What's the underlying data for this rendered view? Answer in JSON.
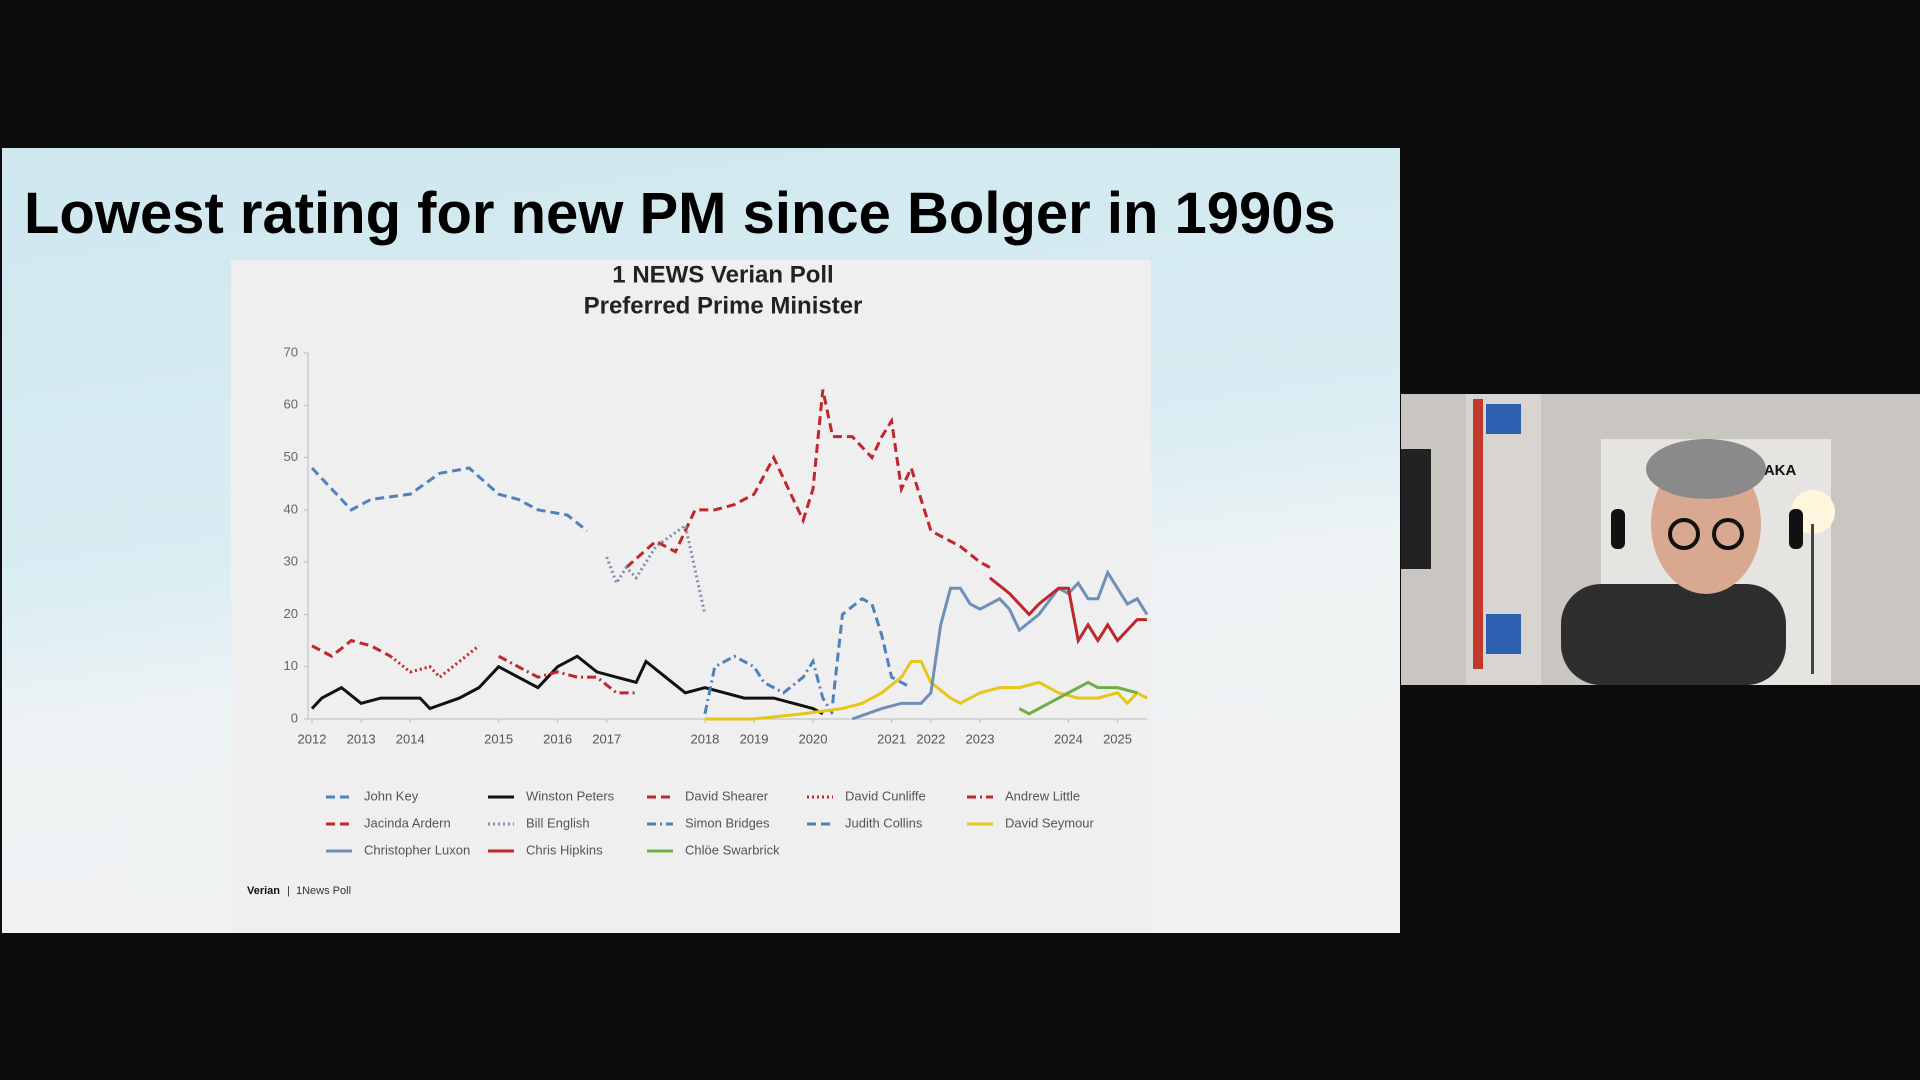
{
  "slide": {
    "title": "Lowest rating for new PM since Bolger in 1990s",
    "source": {
      "brand": "Verian",
      "separator": "|",
      "text": "1News Poll"
    }
  },
  "webcam": {
    "sign_text": "KAKA"
  },
  "chart_data": {
    "type": "line",
    "title": "1 NEWS Verian Poll",
    "subtitle": "Preferred Prime Minister",
    "xlim": [
      0,
      85
    ],
    "xticks": [
      {
        "value": 0,
        "label": "2012"
      },
      {
        "value": 5,
        "label": "2013"
      },
      {
        "value": 10,
        "label": "2014"
      },
      {
        "value": 19,
        "label": "2015"
      },
      {
        "value": 25,
        "label": "2016"
      },
      {
        "value": 30,
        "label": "2017"
      },
      {
        "value": 40,
        "label": "2018"
      },
      {
        "value": 45,
        "label": "2019"
      },
      {
        "value": 51,
        "label": "2020"
      },
      {
        "value": 59,
        "label": "2021"
      },
      {
        "value": 63,
        "label": "2022"
      },
      {
        "value": 68,
        "label": "2023"
      },
      {
        "value": 77,
        "label": "2024"
      },
      {
        "value": 82,
        "label": "2025"
      }
    ],
    "ylim": [
      0,
      70
    ],
    "yticks": [
      0,
      10,
      20,
      30,
      40,
      50,
      60,
      70
    ],
    "series": [
      {
        "name": "John Key",
        "color": "#4f81bd",
        "dash": "dash",
        "x": [
          0,
          2,
          4,
          6,
          10,
          13,
          16,
          19,
          21,
          23,
          26,
          28
        ],
        "values": [
          48,
          44,
          40,
          42,
          43,
          47,
          48,
          43,
          42,
          40,
          39,
          36
        ]
      },
      {
        "name": "Winston Peters",
        "color": "#111111",
        "dash": "solid",
        "x": [
          0,
          1,
          3,
          5,
          7,
          11,
          12,
          15,
          17,
          19,
          21,
          23,
          25,
          27,
          29,
          31,
          33,
          34,
          36,
          38,
          40,
          42,
          44,
          47,
          49,
          51,
          52
        ],
        "values": [
          2,
          4,
          6,
          3,
          4,
          4,
          2,
          4,
          6,
          10,
          8,
          6,
          10,
          12,
          9,
          8,
          7,
          11,
          8,
          5,
          6,
          5,
          4,
          4,
          3,
          2,
          1
        ]
      },
      {
        "name": "David Shearer",
        "color": "#c0272d",
        "dash": "dash",
        "x": [
          0,
          2,
          4,
          6,
          8
        ],
        "values": [
          14,
          12,
          15,
          14,
          12
        ]
      },
      {
        "name": "David Cunliffe",
        "color": "#c0272d",
        "dash": "dot",
        "x": [
          8,
          10,
          12,
          13,
          15,
          17
        ],
        "values": [
          12,
          9,
          10,
          8,
          11,
          14
        ]
      },
      {
        "name": "Andrew Little",
        "color": "#c0272d",
        "dash": "dashdot",
        "x": [
          19,
          21,
          23,
          25,
          27,
          29,
          31,
          33
        ],
        "values": [
          12,
          10,
          8,
          9,
          8,
          8,
          5,
          5
        ]
      },
      {
        "name": "Jacinda Ardern",
        "color": "#c0272d",
        "dash": "dash",
        "x": [
          32,
          35,
          37,
          39,
          41,
          43,
          45,
          47,
          49,
          50,
          51,
          52,
          53,
          55,
          57,
          58,
          59,
          60,
          61,
          63,
          66,
          68,
          69
        ],
        "values": [
          29,
          34,
          32,
          40,
          40,
          41,
          43,
          50,
          42,
          38,
          44,
          63,
          54,
          54,
          50,
          54,
          57,
          44,
          48,
          36,
          33,
          30,
          29
        ]
      },
      {
        "name": "Bill English",
        "color": "#7f8fb0",
        "dash": "dot",
        "x": [
          30,
          31,
          32,
          33,
          35,
          38,
          40
        ],
        "values": [
          31,
          26,
          29,
          27,
          33,
          37,
          20
        ]
      },
      {
        "name": "Simon Bridges",
        "color": "#4f81bd",
        "dash": "dashdot",
        "x": [
          40,
          41,
          43,
          45,
          46,
          48,
          50,
          51,
          52,
          53
        ],
        "values": [
          1,
          10,
          12,
          10,
          7,
          5,
          8,
          11,
          4,
          1
        ]
      },
      {
        "name": "Judith Collins",
        "color": "#4f81bd",
        "dash": "dash",
        "x": [
          53,
          54,
          56,
          57,
          58,
          59,
          61
        ],
        "values": [
          3,
          20,
          23,
          22,
          16,
          8,
          6
        ]
      },
      {
        "name": "David Seymour",
        "color": "#e6c619",
        "dash": "solid",
        "x": [
          40,
          42,
          45,
          50,
          54,
          56,
          58,
          60,
          61,
          62,
          63,
          65,
          66,
          68,
          70,
          72,
          74,
          76,
          78,
          80,
          82,
          83,
          84,
          85
        ],
        "values": [
          0,
          0,
          0,
          1,
          2,
          3,
          5,
          8,
          11,
          11,
          7,
          4,
          3,
          5,
          6,
          6,
          7,
          5,
          4,
          4,
          5,
          3,
          5,
          4
        ]
      },
      {
        "name": "Christopher Luxon",
        "color": "#6f8fb8",
        "dash": "solid",
        "x": [
          55,
          58,
          60,
          62,
          63,
          64,
          65,
          66,
          67,
          68,
          70,
          71,
          72,
          74,
          76,
          77,
          78,
          79,
          80,
          81,
          82,
          83,
          84,
          85
        ],
        "values": [
          0,
          2,
          3,
          3,
          5,
          18,
          25,
          25,
          22,
          21,
          23,
          21,
          17,
          20,
          25,
          24,
          26,
          23,
          23,
          28,
          25,
          22,
          23,
          20
        ]
      },
      {
        "name": "Chris Hipkins",
        "color": "#c0272d",
        "dash": "solid",
        "x": [
          69,
          71,
          73,
          74,
          76,
          77,
          78,
          79,
          80,
          81,
          82,
          84,
          85
        ],
        "values": [
          27,
          24,
          20,
          22,
          25,
          25,
          15,
          18,
          15,
          18,
          15,
          19,
          19
        ]
      },
      {
        "name": "Chlöe Swarbrick",
        "color": "#70ad47",
        "dash": "solid",
        "x": [
          72,
          73,
          75,
          77,
          78,
          79,
          80,
          82,
          84
        ],
        "values": [
          2,
          1,
          3,
          5,
          6,
          7,
          6,
          6,
          5
        ]
      }
    ]
  }
}
